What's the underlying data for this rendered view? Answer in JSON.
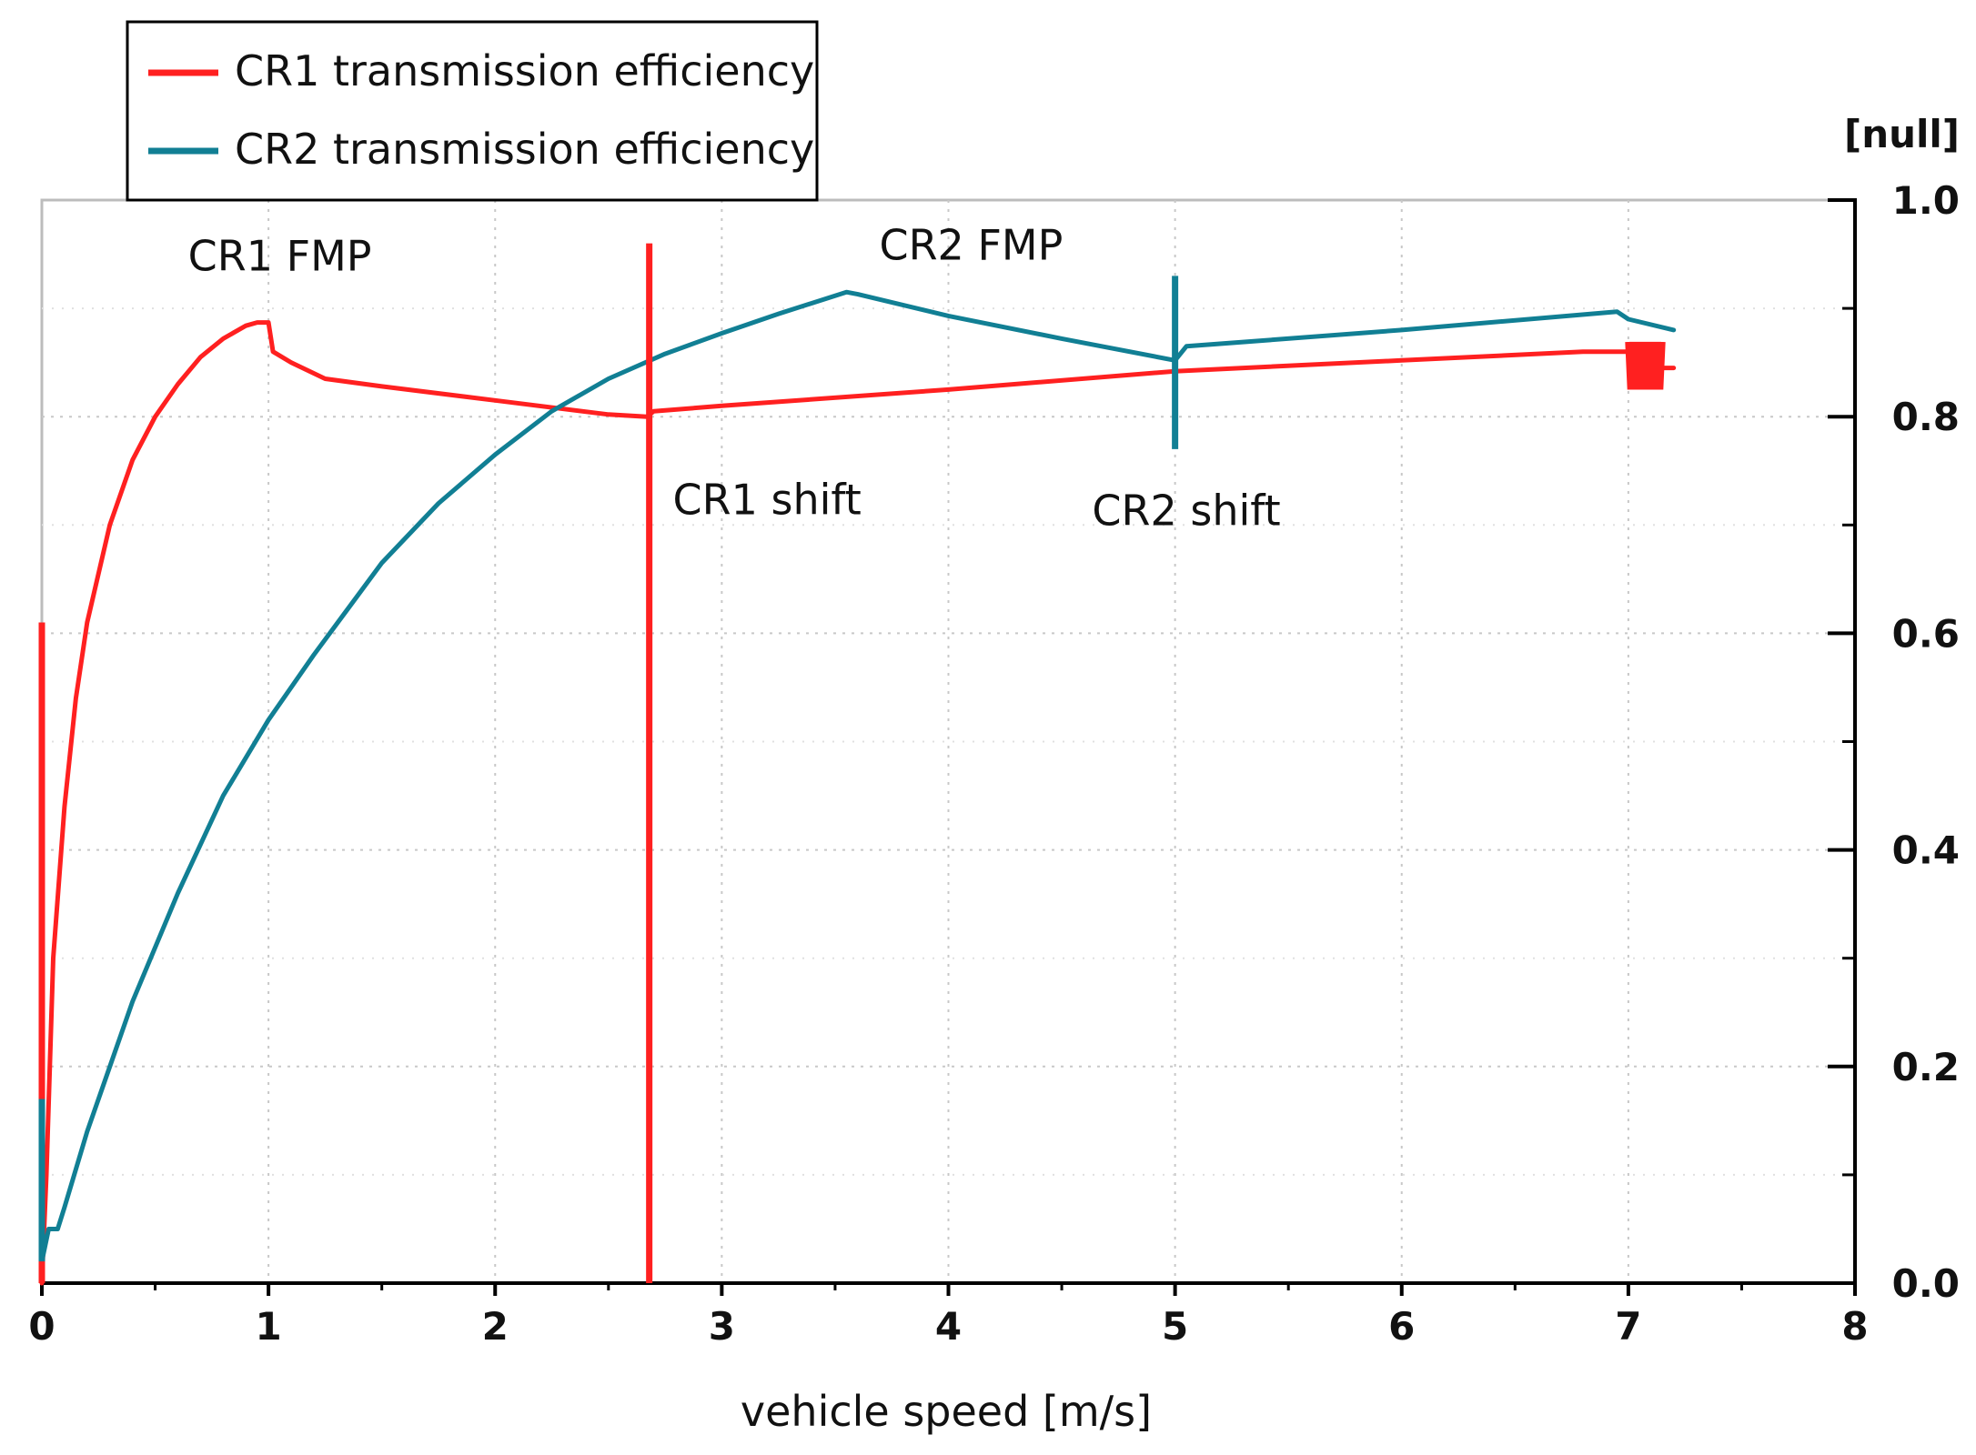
{
  "chart_data": {
    "type": "line",
    "title": "",
    "xlabel": "vehicle speed  [m/s]",
    "ylabel": "[null]",
    "xlim": [
      0,
      8
    ],
    "ylim": [
      0,
      1.0
    ],
    "x_major_ticks": [
      0,
      1,
      2,
      3,
      4,
      5,
      6,
      7,
      8
    ],
    "x_tick_labels": [
      "0",
      "1",
      "2",
      "3",
      "4",
      "5",
      "6",
      "7",
      "8"
    ],
    "y_major_ticks": [
      0,
      0.2,
      0.4,
      0.6,
      0.8,
      1.0
    ],
    "y_tick_labels": [
      "0.0",
      "0.2",
      "0.4",
      "0.6",
      "0.8",
      "1.0"
    ],
    "y_minor_ticks": [
      0.1,
      0.3,
      0.5,
      0.7,
      0.9
    ],
    "x_minor_ticks": [
      0.5,
      1.5,
      2.5,
      3.5,
      4.5,
      5.5,
      6.5,
      7.5
    ],
    "y_axis_side": "right",
    "grid": true,
    "legend_position": "top-left",
    "series": [
      {
        "name": "CR1 transmission efficiency",
        "color": "#ff2020",
        "x": [
          0.0,
          0.02,
          0.05,
          0.1,
          0.15,
          0.2,
          0.3,
          0.4,
          0.5,
          0.6,
          0.7,
          0.8,
          0.9,
          0.95,
          1.0,
          1.02,
          1.1,
          1.25,
          1.5,
          2.0,
          2.5,
          2.67,
          2.7,
          3.0,
          4.0,
          5.0,
          6.0,
          6.8,
          7.0,
          7.1,
          7.2
        ],
        "y": [
          0.0,
          0.1,
          0.3,
          0.44,
          0.54,
          0.61,
          0.7,
          0.76,
          0.8,
          0.83,
          0.855,
          0.872,
          0.884,
          0.887,
          0.887,
          0.86,
          0.85,
          0.835,
          0.828,
          0.815,
          0.802,
          0.8,
          0.805,
          0.81,
          0.825,
          0.842,
          0.852,
          0.86,
          0.86,
          0.845,
          0.845
        ]
      },
      {
        "name": "CR2 transmission efficiency",
        "color": "#117f94",
        "x": [
          0.0,
          0.03,
          0.07,
          0.1,
          0.2,
          0.4,
          0.6,
          0.8,
          1.0,
          1.2,
          1.5,
          1.75,
          2.0,
          2.25,
          2.5,
          2.75,
          3.0,
          3.25,
          3.55,
          3.6,
          4.0,
          4.5,
          5.0,
          5.05,
          6.0,
          6.95,
          7.0,
          7.2
        ],
        "y": [
          0.02,
          0.05,
          0.05,
          0.07,
          0.14,
          0.26,
          0.36,
          0.45,
          0.52,
          0.58,
          0.665,
          0.72,
          0.765,
          0.805,
          0.835,
          0.858,
          0.877,
          0.895,
          0.915,
          0.913,
          0.893,
          0.872,
          0.852,
          0.865,
          0.88,
          0.897,
          0.89,
          0.88
        ]
      }
    ],
    "spikes": [
      {
        "series": "CR1 transmission efficiency",
        "x": 0.0,
        "y_from": 0.0,
        "y_to": 0.61
      },
      {
        "series": "CR1 transmission efficiency",
        "x": 2.68,
        "y_from": 0.0,
        "y_to": 0.96
      },
      {
        "series": "CR2 transmission efficiency",
        "x": 0.0,
        "y_from": 0.02,
        "y_to": 0.17
      },
      {
        "series": "CR2 transmission efficiency",
        "x": 5.0,
        "y_from": 0.77,
        "y_to": 0.93
      }
    ],
    "oscillation": {
      "series": "CR1 transmission efficiency",
      "x": 7.07,
      "y_center": 0.847,
      "amplitude": 0.022
    },
    "annotations": [
      {
        "text": "CR1 FMP",
        "x": 1.05,
        "y": 0.935
      },
      {
        "text": "CR2 FMP",
        "x": 4.1,
        "y": 0.945
      },
      {
        "text": "CR1 shift",
        "x": 3.2,
        "y": 0.71
      },
      {
        "text": "CR2 shift",
        "x": 5.05,
        "y": 0.7
      }
    ]
  }
}
